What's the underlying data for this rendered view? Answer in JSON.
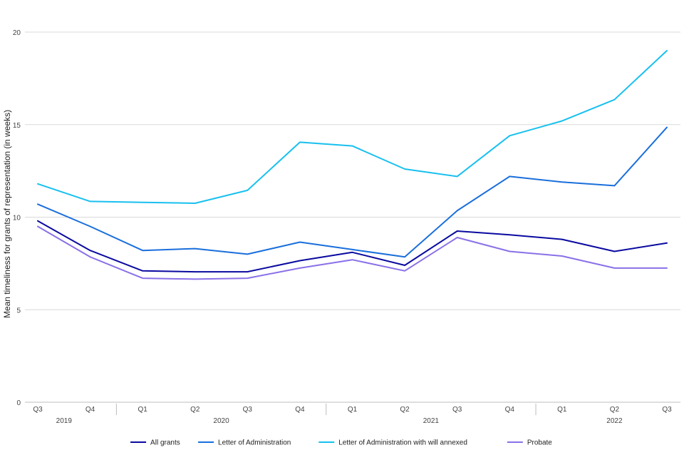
{
  "chart_data": {
    "type": "line",
    "title": "",
    "xlabel": "",
    "ylabel": "Mean timeliness for grants of representation (in weeks)",
    "ylim": [
      0,
      20
    ],
    "yticks": [
      0,
      5,
      10,
      15,
      20
    ],
    "grid": true,
    "legend_position": "bottom",
    "categories": [
      "Q3",
      "Q4",
      "Q1",
      "Q2",
      "Q3",
      "Q4",
      "Q1",
      "Q2",
      "Q3",
      "Q4",
      "Q1",
      "Q2",
      "Q3"
    ],
    "years": [
      {
        "label": "2019",
        "start": 0,
        "end": 1
      },
      {
        "label": "2020",
        "start": 2,
        "end": 5
      },
      {
        "label": "2021",
        "start": 6,
        "end": 9
      },
      {
        "label": "2022",
        "start": 10,
        "end": 12
      }
    ],
    "series": [
      {
        "name": "All grants",
        "color": "#0a0aa0",
        "values": [
          9.8,
          8.2,
          7.1,
          7.05,
          7.05,
          7.65,
          8.1,
          7.4,
          9.25,
          9.05,
          8.8,
          8.15,
          8.6
        ]
      },
      {
        "name": "Letter of Administration",
        "color": "#1a6fdc",
        "values": [
          10.7,
          9.5,
          8.2,
          8.3,
          8.0,
          8.65,
          8.25,
          7.85,
          10.35,
          12.2,
          11.9,
          11.7,
          14.85
        ]
      },
      {
        "name": "Letter of Administration with will annexed",
        "color": "#18c0ef",
        "values": [
          11.8,
          10.85,
          10.8,
          10.75,
          11.45,
          14.05,
          13.85,
          12.6,
          12.2,
          14.4,
          15.2,
          16.35,
          19.0
        ]
      },
      {
        "name": "Probate",
        "color": "#8a70e8",
        "values": [
          9.5,
          7.85,
          6.7,
          6.65,
          6.7,
          7.25,
          7.7,
          7.1,
          8.9,
          8.15,
          7.9,
          7.25,
          7.25
        ]
      }
    ]
  }
}
